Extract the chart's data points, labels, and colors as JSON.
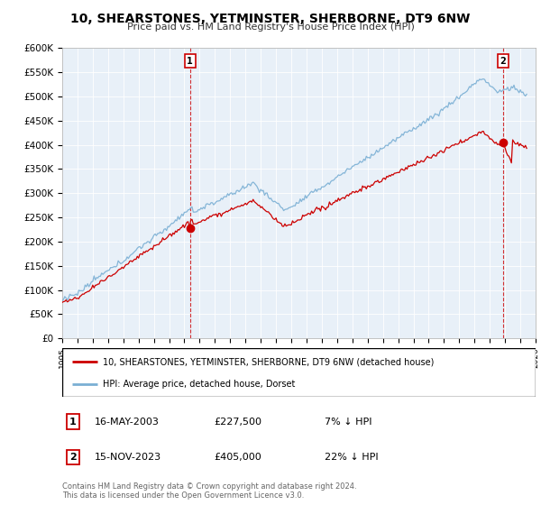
{
  "title": "10, SHEARSTONES, YETMINSTER, SHERBORNE, DT9 6NW",
  "subtitle": "Price paid vs. HM Land Registry's House Price Index (HPI)",
  "ylabel_ticks": [
    "£0",
    "£50K",
    "£100K",
    "£150K",
    "£200K",
    "£250K",
    "£300K",
    "£350K",
    "£400K",
    "£450K",
    "£500K",
    "£550K",
    "£600K"
  ],
  "ytick_values": [
    0,
    50000,
    100000,
    150000,
    200000,
    250000,
    300000,
    350000,
    400000,
    450000,
    500000,
    550000,
    600000
  ],
  "sale1_date_num": 2003.37,
  "sale1_price": 227500,
  "sale2_date_num": 2023.87,
  "sale2_price": 405000,
  "sale1_label": "1",
  "sale2_label": "2",
  "sale1_date_str": "16-MAY-2003",
  "sale1_price_str": "£227,500",
  "sale1_hpi_str": "7% ↓ HPI",
  "sale2_date_str": "15-NOV-2023",
  "sale2_price_str": "£405,000",
  "sale2_hpi_str": "22% ↓ HPI",
  "legend1": "10, SHEARSTONES, YETMINSTER, SHERBORNE, DT9 6NW (detached house)",
  "legend2": "HPI: Average price, detached house, Dorset",
  "line_color_red": "#cc0000",
  "line_color_blue": "#7aafd4",
  "marker_color": "#cc0000",
  "bg_color": "#e8f0f8",
  "footer1": "Contains HM Land Registry data © Crown copyright and database right 2024.",
  "footer2": "This data is licensed under the Open Government Licence v3.0.",
  "xmin": 1995,
  "xmax": 2026,
  "ymin": 0,
  "ymax": 600000
}
